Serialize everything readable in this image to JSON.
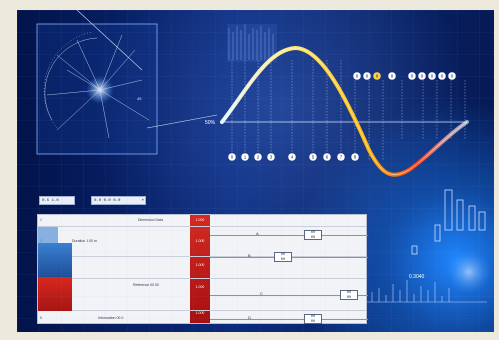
{
  "colors": {
    "background": "#0a2a7c",
    "accent_glow": "#1f86ff",
    "wave_start": "#e0f4ff",
    "wave_hot": "#ffd63a",
    "wave_end": "#ff3a10",
    "table_red": "#c81e18",
    "table_blue": "#2c6fc4"
  },
  "top": {
    "wave_label": "50%",
    "top_circles": [
      "0",
      "0",
      "0",
      "0",
      "0",
      "0",
      "0",
      "0",
      "0"
    ],
    "bottom_circles": [
      "0",
      "1",
      "2",
      "3",
      "4",
      "5",
      "6",
      "7",
      "8"
    ],
    "right_value": "0.3040"
  },
  "controls": [
    {
      "label": "0.5  1.0"
    },
    {
      "label": "0.0  0.0 0.0"
    }
  ],
  "table": {
    "rows": [
      {
        "tag": "1",
        "label": "Dimension Data",
        "red_value": "1.000"
      },
      {
        "tag": "2",
        "label": "Duration 1.00 m",
        "red_value": "1.000"
      },
      {
        "tag": "3",
        "label": "",
        "red_value": "1.000"
      },
      {
        "tag": "4",
        "label": "Reference 00.00",
        "red_value": "1.000"
      },
      {
        "tag": "5",
        "label": "Information 00.0",
        "red_value": "1.000"
      }
    ],
    "mid_letters": [
      "A",
      "B",
      "C",
      "D"
    ],
    "boxes": [
      {
        "top": "00",
        "bottom": "00"
      },
      {
        "top": "00",
        "bottom": "00"
      },
      {
        "top": "00",
        "bottom": "00"
      },
      {
        "top": "00",
        "bottom": "00"
      }
    ]
  }
}
